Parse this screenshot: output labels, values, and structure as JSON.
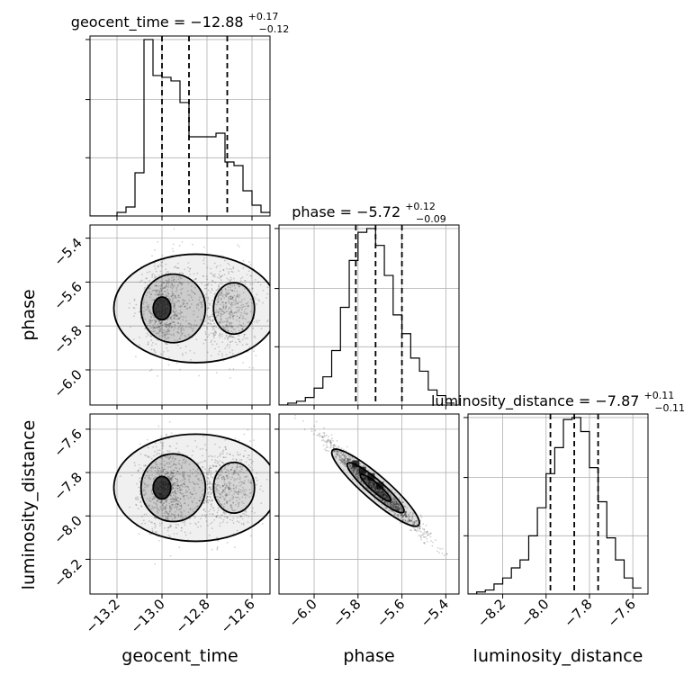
{
  "chart_data": {
    "type": "corner",
    "parameters": [
      "geocent_time",
      "phase",
      "luminosity_distance"
    ],
    "axis_labels": [
      "geocent_time",
      "phase",
      "luminosity_distance"
    ],
    "titles": [
      {
        "name": "geocent_time",
        "median": "−12.88",
        "plus": "+0.17",
        "minus": "−0.12"
      },
      {
        "name": "phase",
        "median": "−5.72",
        "plus": "+0.12",
        "minus": "−0.09"
      },
      {
        "name": "luminosity_distance",
        "median": "−7.87",
        "plus": "+0.11",
        "minus": "−0.11"
      }
    ],
    "ranges": {
      "geocent_time": [
        -13.32,
        -12.52
      ],
      "phase": [
        -6.16,
        -5.34
      ],
      "luminosity_distance": [
        -8.36,
        -7.53
      ]
    },
    "ticks": {
      "geocent_time": [
        -13.2,
        -13.0,
        -12.8,
        -12.6
      ],
      "phase": [
        -6.0,
        -5.8,
        -5.6,
        -5.4
      ],
      "luminosity_distance": [
        -8.2,
        -8.0,
        -7.8,
        -7.6
      ]
    },
    "tick_labels": {
      "geocent_time": [
        "−13.2",
        "−13.0",
        "−12.8",
        "−12.6"
      ],
      "phase": [
        "−6.0",
        "−5.8",
        "−5.6",
        "−5.4"
      ],
      "luminosity_distance": [
        "−8.2",
        "−8.0",
        "−7.8",
        "−7.6"
      ]
    },
    "quantiles": {
      "geocent_time": [
        -13.0,
        -12.88,
        -12.71
      ],
      "phase": [
        -5.81,
        -5.72,
        -5.6
      ],
      "luminosity_distance": [
        -7.98,
        -7.87,
        -7.76
      ]
    },
    "histograms": {
      "geocent_time": {
        "edges": [
          -13.32,
          -13.28,
          -13.24,
          -13.2,
          -13.16,
          -13.12,
          -13.08,
          -13.04,
          -13.0,
          -12.96,
          -12.92,
          -12.88,
          -12.84,
          -12.8,
          -12.76,
          -12.72,
          -12.68,
          -12.64,
          -12.6,
          -12.56,
          -12.52
        ],
        "counts": [
          0,
          0,
          0,
          2,
          5,
          24,
          98,
          78,
          77,
          75,
          63,
          44,
          44,
          44,
          46,
          30,
          28,
          14,
          6,
          2
        ]
      },
      "phase": {
        "edges": [
          -6.16,
          -6.12,
          -6.08,
          -6.04,
          -6.0,
          -5.96,
          -5.92,
          -5.88,
          -5.84,
          -5.8,
          -5.76,
          -5.72,
          -5.68,
          -5.64,
          -5.6,
          -5.56,
          -5.52,
          -5.48,
          -5.44,
          -5.4,
          -5.36
        ],
        "counts": [
          0,
          1,
          2,
          4,
          9,
          15,
          29,
          52,
          77,
          92,
          94,
          85,
          69,
          48,
          38,
          25,
          18,
          8,
          5,
          1
        ]
      },
      "luminosity_distance": {
        "edges": [
          -8.36,
          -8.32,
          -8.28,
          -8.24,
          -8.2,
          -8.16,
          -8.12,
          -8.08,
          -8.04,
          -8.0,
          -7.96,
          -7.92,
          -7.88,
          -7.84,
          -7.8,
          -7.76,
          -7.72,
          -7.68,
          -7.64,
          -7.6,
          -7.56
        ],
        "counts": [
          0,
          1,
          2,
          5,
          8,
          13,
          17,
          29,
          43,
          60,
          73,
          87,
          88,
          81,
          63,
          46,
          28,
          17,
          8,
          3
        ]
      }
    },
    "xy_heat": {
      "phase_vs_geocent": [
        {
          "x": -13.0,
          "y": -5.75,
          "w": 3
        },
        {
          "x": -12.95,
          "y": -5.68,
          "w": 2
        },
        {
          "x": -12.93,
          "y": -5.75,
          "w": 2
        },
        {
          "x": -12.98,
          "y": -5.62,
          "w": 1
        },
        {
          "x": -12.88,
          "y": -5.74,
          "w": 1
        },
        {
          "x": -12.68,
          "y": -5.65,
          "w": 1
        }
      ]
    },
    "grid": true
  }
}
